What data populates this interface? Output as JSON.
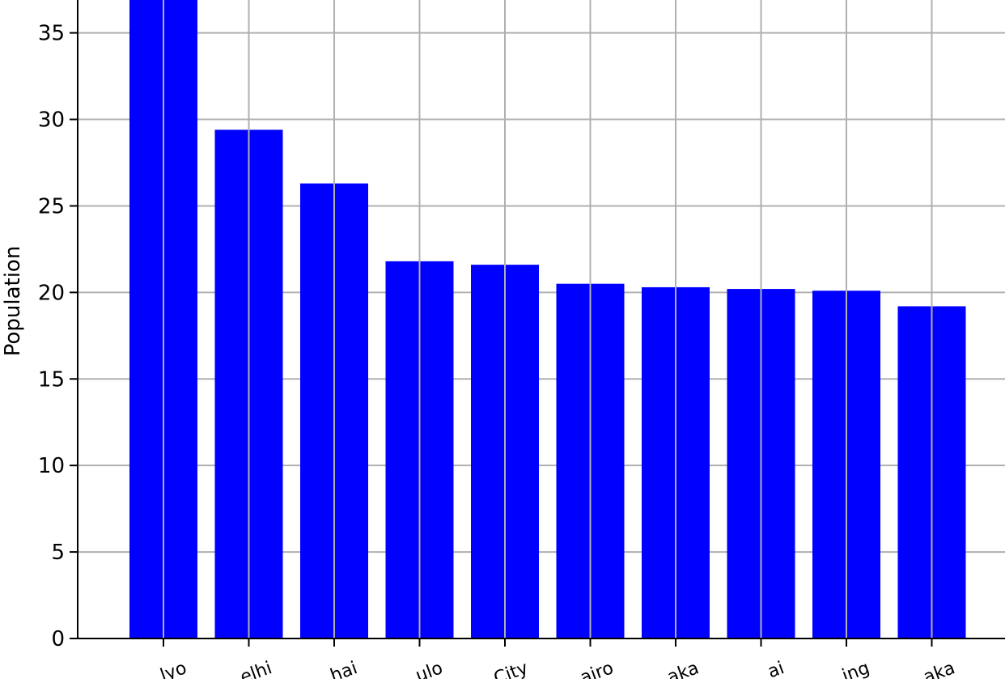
{
  "colors": {
    "bar": "#0000ff",
    "grid": "#b0b0b0",
    "axis": "#000000",
    "background": "#ffffff"
  },
  "chart_data": {
    "type": "bar",
    "title": "",
    "xlabel": "",
    "ylabel": "Population",
    "categories": [
      "Tokyo",
      "Delhi",
      "Shanghai",
      "São Paulo",
      "Mexico City",
      "Cairo",
      "Dhaka",
      "Mumbai",
      "Beijing",
      "Osaka"
    ],
    "category_visible_text": [
      "lyo",
      "elhi",
      "hai",
      "ulo",
      "City",
      "airo",
      "aka",
      "ai",
      "ing",
      "aka"
    ],
    "values": [
      37.4,
      29.4,
      26.3,
      21.8,
      21.6,
      20.5,
      20.3,
      20.2,
      20.1,
      19.2
    ],
    "ylim": [
      0,
      36.9
    ],
    "yticks": [
      0,
      5,
      10,
      15,
      20,
      25,
      30,
      35
    ],
    "grid": true,
    "legend": "none"
  }
}
